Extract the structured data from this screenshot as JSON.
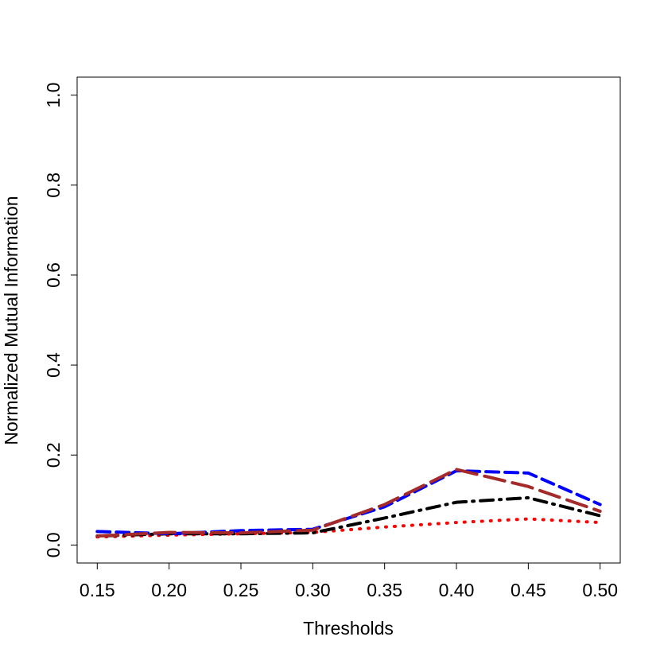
{
  "chart_data": {
    "type": "line",
    "xlabel": "Thresholds",
    "ylabel": "Normalized Mutual Information",
    "x": [
      0.15,
      0.2,
      0.25,
      0.3,
      0.35,
      0.4,
      0.45,
      0.5
    ],
    "series": [
      {
        "color": "#ff0000",
        "dash": "dotted",
        "values": [
          0.018,
          0.022,
          0.025,
          0.028,
          0.04,
          0.05,
          0.058,
          0.05
        ]
      },
      {
        "color": "#000000",
        "dash": "dotdash",
        "values": [
          0.02,
          0.025,
          0.025,
          0.027,
          0.06,
          0.095,
          0.105,
          0.065
        ]
      },
      {
        "color": "#0000ff",
        "dash": "dashed",
        "values": [
          0.03,
          0.025,
          0.032,
          0.035,
          0.085,
          0.165,
          0.16,
          0.09
        ]
      },
      {
        "color": "#a52a2a",
        "dash": "longdash",
        "values": [
          0.02,
          0.028,
          0.027,
          0.033,
          0.09,
          0.168,
          0.13,
          0.075
        ]
      }
    ],
    "xlim": [
      0.136,
      0.514
    ],
    "xticks": [
      {
        "value": 0.15,
        "label": "0.15"
      },
      {
        "value": 0.2,
        "label": "0.20"
      },
      {
        "value": 0.25,
        "label": "0.25"
      },
      {
        "value": 0.3,
        "label": "0.30"
      },
      {
        "value": 0.35,
        "label": "0.35"
      },
      {
        "value": 0.4,
        "label": "0.40"
      },
      {
        "value": 0.45,
        "label": "0.45"
      },
      {
        "value": 0.5,
        "label": "0.50"
      }
    ],
    "ylim": [
      -0.04,
      1.04
    ],
    "yticks": [
      {
        "value": 0,
        "label": "0.0"
      },
      {
        "value": 0.2,
        "label": "0.2"
      },
      {
        "value": 0.4,
        "label": "0.4"
      },
      {
        "value": 0.6,
        "label": "0.6"
      },
      {
        "value": 0.8,
        "label": "0.8"
      },
      {
        "value": 1,
        "label": "1.0"
      }
    ]
  }
}
